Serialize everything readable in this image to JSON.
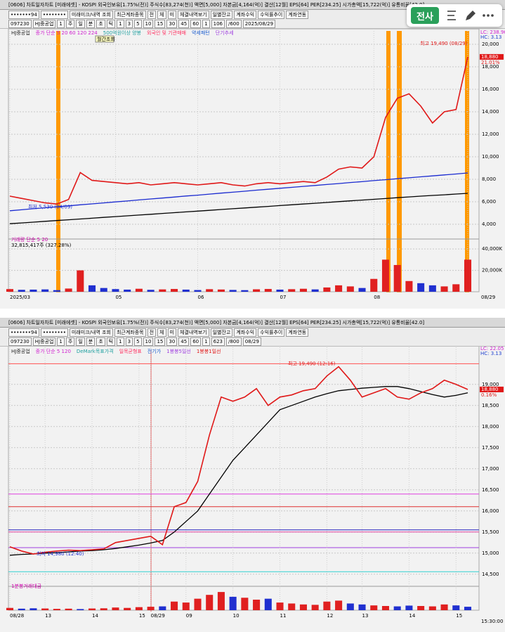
{
  "overlay": {
    "button": "전사"
  },
  "windows": [
    {
      "title_bar": "[0606] 차트일자차트 [미래에셋] - KOSPI 외국인보유[1.75%(전)] 주식수[83,274(천)] 액면[5,000] 자본금[4,164(억)] 결산[12월] EPS[64] PER[234.25] 시가총액[15,722(억)] 유통비율[42.0]",
      "toolbar_row1": [
        "•••••••94",
        "••••••••",
        "미래미크/내역 조회",
        "최근계좌종목",
        "전",
        "체",
        "미",
        "체결내역보기",
        "일별잔고",
        "계좌수익",
        "수익률추이",
        "계좌연동"
      ],
      "toolbar_row2": [
        "097230",
        "HJ중공업",
        "1",
        "주",
        "일",
        "분",
        "초",
        "틱",
        "1",
        "3",
        "5",
        "10",
        "15",
        "30",
        "45",
        "60",
        "1",
        "106",
        "/600",
        "2025/08/29"
      ]
    },
    {
      "title_bar": "[0606] 차트일자차트 [미래에셋] - KOSPI 외국인보유[1.75%(전)] 주식수[83,274(천)] 액면[5,000] 자본금[4,164(억)] 결산[12월] EPS[64] PER[234.25] 시가총액[15,722(억)] 유통비율[42.0]",
      "toolbar_row1": [
        "•••••••94",
        "••••••••",
        "미래미크/내역 조회",
        "최근계좌종목",
        "전",
        "체",
        "미",
        "체결내역보기",
        "일별잔고",
        "계좌수익",
        "수익률추이",
        "계좌연동"
      ],
      "toolbar_row2": [
        "097230",
        "HJ중공업",
        "1",
        "주",
        "일",
        "분",
        "초",
        "틱",
        "1",
        "3",
        "5",
        "10",
        "15",
        "30",
        "45",
        "60",
        "1",
        "623",
        "/800",
        "08/29"
      ]
    }
  ],
  "chart_data": [
    {
      "type": "line",
      "legend": [
        "HJ중공업",
        "종가 단순 5 20 60 120 224",
        "500억원이상 양봉",
        "외국인 및 기관매매",
        "약세패턴",
        "단기추세"
      ],
      "tooltip": "월간조회",
      "lc": "LC: 238.96",
      "hc": "HC: 3.13",
      "categories": [
        "2025/03",
        null,
        null,
        null,
        null,
        null,
        null,
        null,
        null,
        "05",
        null,
        null,
        null,
        null,
        null,
        null,
        "06",
        null,
        null,
        null,
        null,
        null,
        null,
        "07",
        null,
        null,
        null,
        null,
        null,
        null,
        null,
        "08",
        null,
        null,
        null,
        null,
        null,
        null,
        null,
        "08/29"
      ],
      "series": [
        {
          "name": "종가",
          "color": "#e01818",
          "values": [
            6500,
            6300,
            6100,
            5900,
            5800,
            6200,
            8600,
            7900,
            7800,
            7700,
            7600,
            7700,
            7500,
            7600,
            7700,
            7600,
            7500,
            7600,
            7700,
            7500,
            7400,
            7600,
            7700,
            7600,
            7700,
            7800,
            7700,
            8200,
            8900,
            9100,
            9000,
            10000,
            13500,
            15200,
            15600,
            14500,
            13000,
            14000,
            14200,
            18880
          ]
        },
        {
          "name": "단순 60",
          "color": "#1a2ad0",
          "values": [
            5200,
            5290,
            5380,
            5470,
            5550,
            5640,
            5730,
            5810,
            5900,
            5990,
            6070,
            6160,
            6250,
            6330,
            6420,
            6510,
            6590,
            6680,
            6770,
            6850,
            6940,
            7030,
            7110,
            7200,
            7280,
            7370,
            7450,
            7540,
            7620,
            7710,
            7790,
            7880,
            7960,
            8050,
            8130,
            8220,
            8300,
            8390,
            8470,
            8560
          ]
        },
        {
          "name": "단순 224",
          "color": "#000000",
          "values": [
            4050,
            4120,
            4190,
            4260,
            4330,
            4400,
            4470,
            4540,
            4610,
            4680,
            4750,
            4820,
            4890,
            4960,
            5030,
            5100,
            5170,
            5240,
            5310,
            5380,
            5450,
            5520,
            5590,
            5660,
            5730,
            5800,
            5870,
            5940,
            6010,
            6080,
            6150,
            6220,
            6290,
            6360,
            6430,
            6500,
            6560,
            6620,
            6690,
            6750
          ]
        }
      ],
      "ylim": [
        3000,
        21000
      ],
      "yticks": [
        {
          "value": 4000,
          "label": "4,000"
        },
        {
          "value": 6000,
          "label": "6,000"
        },
        {
          "value": 8000,
          "label": "8,000"
        },
        {
          "value": 10000,
          "label": "10,000"
        },
        {
          "value": 12000,
          "label": "12,000"
        },
        {
          "value": 14000,
          "label": "14,000"
        },
        {
          "value": 16000,
          "label": "16,000"
        },
        {
          "value": 18000,
          "label": "18,000"
        },
        {
          "value": 20000,
          "label": "20,000"
        }
      ],
      "last_price": {
        "value": 18880,
        "label": "18,880"
      },
      "change": "21.01%",
      "annotations": [
        {
          "text": "최고 19,490 (08/29)",
          "value": 19490
        },
        {
          "text": "최저 5,530 (04/09)",
          "value": 5530
        }
      ],
      "volume": {
        "legend": "거래량 단순 5 20",
        "note": "32,815,417주 (327.28%)",
        "values": [
          2500,
          1800,
          2000,
          2200,
          1500,
          3000,
          20000,
          6000,
          3500,
          2500,
          2000,
          2800,
          1800,
          2200,
          2600,
          2000,
          1600,
          2400,
          2100,
          1700,
          1500,
          2300,
          2600,
          2000,
          2400,
          2800,
          2200,
          4000,
          6000,
          5000,
          3500,
          12000,
          30000,
          25000,
          10000,
          8000,
          6000,
          5000,
          7000,
          30000
        ],
        "ylim": [
          0,
          46000
        ],
        "yticks": [
          {
            "value": 20000,
            "label": "20,000K"
          },
          {
            "value": 40000,
            "label": "40,000K"
          }
        ]
      }
    },
    {
      "type": "line",
      "legend": [
        "HJ중공업",
        "종가 단순 5 120",
        "DeMark목표가격",
        "일목균형표",
        "전기가",
        "1봉봉5일선",
        "1봉봉1일선"
      ],
      "lc": "LC: 22.05",
      "hc": "HC: 3.13",
      "categories": [
        "08/28",
        null,
        null,
        "13",
        null,
        null,
        null,
        "14",
        null,
        null,
        null,
        "15",
        "08/29",
        null,
        null,
        "09",
        null,
        null,
        null,
        "10",
        null,
        null,
        null,
        "11",
        null,
        null,
        null,
        "12",
        null,
        null,
        "13",
        null,
        null,
        null,
        "14",
        null,
        null,
        null,
        "15",
        null
      ],
      "series": [
        {
          "name": "종가",
          "color": "#e01818",
          "values": [
            15150,
            15050,
            14980,
            15020,
            15050,
            15070,
            15060,
            15080,
            15100,
            15250,
            15300,
            15350,
            15400,
            15200,
            16100,
            16200,
            16700,
            17800,
            18700,
            18600,
            18700,
            18900,
            18500,
            18700,
            18750,
            18850,
            18900,
            19200,
            19420,
            19100,
            18700,
            18800,
            18900,
            18700,
            18650,
            18800,
            18900,
            19100,
            19000,
            18880
          ]
        },
        {
          "name": "단순 120",
          "color": "#000000",
          "values": [
            14950,
            14970,
            14980,
            15000,
            15010,
            15030,
            15050,
            15060,
            15080,
            15110,
            15150,
            15190,
            15240,
            15300,
            15500,
            15750,
            16000,
            16400,
            16800,
            17200,
            17500,
            17800,
            18100,
            18400,
            18500,
            18600,
            18700,
            18780,
            18850,
            18880,
            18910,
            18930,
            18950,
            18950,
            18900,
            18830,
            18760,
            18700,
            18740,
            18800
          ]
        }
      ],
      "ylim": [
        14280,
        19830
      ],
      "yticks": [
        {
          "value": 14500,
          "label": "14,500"
        },
        {
          "value": 15000,
          "label": "15,000"
        },
        {
          "value": 15500,
          "label": "15,500"
        },
        {
          "value": 16000,
          "label": "16,000"
        },
        {
          "value": 16500,
          "label": "16,500"
        },
        {
          "value": 17000,
          "label": "17,000"
        },
        {
          "value": 17500,
          "label": "17,500"
        },
        {
          "value": 18000,
          "label": "18,000"
        },
        {
          "value": 18500,
          "label": "18,500"
        },
        {
          "value": 19000,
          "label": "19,000"
        }
      ],
      "last_price": {
        "value": 18880,
        "label": "18,880"
      },
      "change": "0.16%",
      "annotations": [
        {
          "text": "최고 19,490 (12:16)",
          "value": 19490
        },
        {
          "text": "최저 14,980 (12:40)",
          "value": 14980
        }
      ],
      "hlines": [
        {
          "value": 19490,
          "color": "#ff5050"
        },
        {
          "value": 16400,
          "color": "#e040e0"
        },
        {
          "value": 16100,
          "color": "#e03030"
        },
        {
          "value": 15550,
          "color": "#2020c0"
        },
        {
          "value": 15500,
          "color": "#e040a0"
        },
        {
          "value": 15130,
          "color": "#a040e0"
        },
        {
          "value": 14560,
          "color": "#30d0d0"
        }
      ],
      "end_label": "15:30:00",
      "volume": {
        "legend": "1분봉거래대금",
        "values": [
          12,
          8,
          10,
          9,
          7,
          8,
          6,
          9,
          10,
          14,
          12,
          16,
          18,
          20,
          45,
          40,
          60,
          80,
          95,
          70,
          65,
          55,
          60,
          40,
          35,
          30,
          28,
          45,
          50,
          35,
          30,
          25,
          22,
          20,
          24,
          22,
          20,
          30,
          25,
          18
        ],
        "ylim": [
          0,
          110
        ]
      }
    }
  ]
}
